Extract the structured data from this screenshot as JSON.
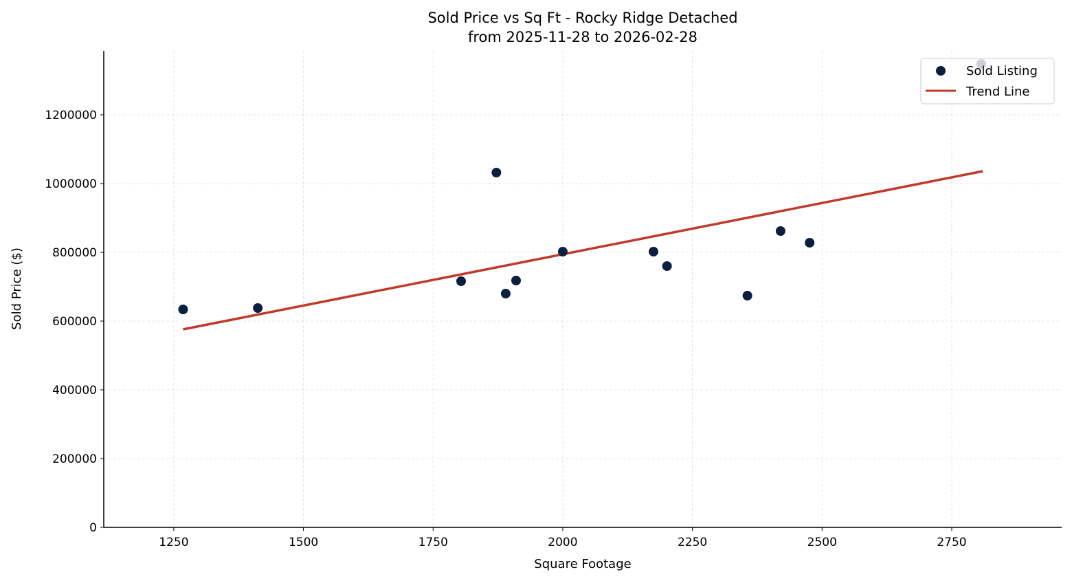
{
  "chart_data": {
    "type": "scatter",
    "title": "Sold Price vs Sq Ft - Rocky Ridge Detached",
    "subtitle": "from 2025-11-28 to 2026-02-28",
    "xlabel": "Square Footage",
    "ylabel": "Sold Price ($)",
    "xlim": [
      1115,
      2962
    ],
    "ylim": [
      0,
      1386000
    ],
    "xticks": [
      1250,
      1500,
      1750,
      2000,
      2250,
      2500,
      2750
    ],
    "yticks": [
      0,
      200000,
      400000,
      600000,
      800000,
      1000000,
      1200000
    ],
    "grid": true,
    "legend_position": "top-right",
    "series": [
      {
        "name": "Sold Listing",
        "type": "scatter",
        "color": "#0b1f3f",
        "points": [
          {
            "x": 1268,
            "y": 634000
          },
          {
            "x": 1412,
            "y": 638000
          },
          {
            "x": 1804,
            "y": 716000
          },
          {
            "x": 1872,
            "y": 1032000
          },
          {
            "x": 1890,
            "y": 680000
          },
          {
            "x": 1910,
            "y": 718000
          },
          {
            "x": 2000,
            "y": 802000
          },
          {
            "x": 2175,
            "y": 802000
          },
          {
            "x": 2201,
            "y": 760000
          },
          {
            "x": 2356,
            "y": 674000
          },
          {
            "x": 2420,
            "y": 862000
          },
          {
            "x": 2476,
            "y": 828000
          },
          {
            "x": 2807,
            "y": 1348000
          }
        ]
      },
      {
        "name": "Trend Line",
        "type": "line",
        "color": "#c0392b",
        "points": [
          {
            "x": 1268,
            "y": 576000
          },
          {
            "x": 2810,
            "y": 1036000
          }
        ]
      }
    ]
  }
}
